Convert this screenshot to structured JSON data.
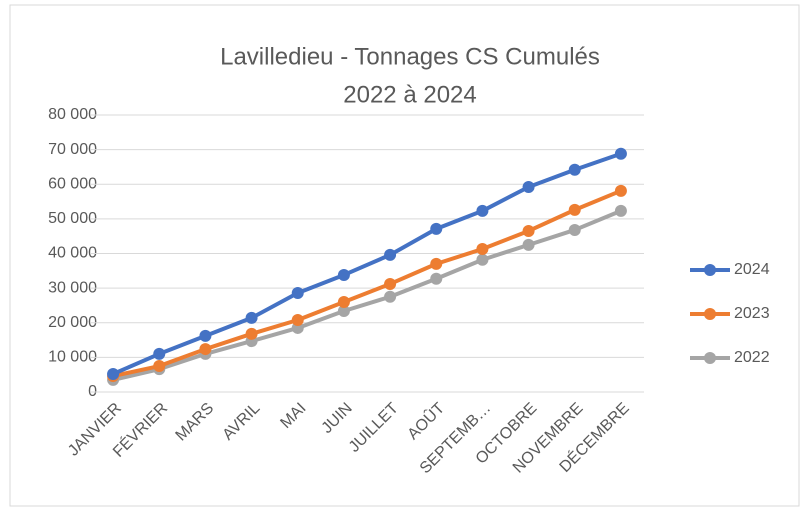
{
  "chart_data": {
    "type": "line",
    "title": "Lavilledieu - Tonnages CS Cumulés",
    "subtitle": "2022 à 2024",
    "categories": [
      "JANVIER",
      "FÉVRIER",
      "MARS",
      "AVRIL",
      "MAI",
      "JUIN",
      "JUILLET",
      "AOÛT",
      "SEPTEMB…",
      "OCTOBRE",
      "NOVEMBRE",
      "DÉCEMBRE"
    ],
    "series": [
      {
        "name": "2024",
        "color": "#4472c4",
        "values": [
          5200,
          11000,
          16200,
          21400,
          28600,
          33800,
          39600,
          47100,
          52300,
          59200,
          64200,
          68800
        ]
      },
      {
        "name": "2023",
        "color": "#ed7d31",
        "values": [
          4600,
          7500,
          12400,
          16800,
          20800,
          26000,
          31200,
          37000,
          41300,
          46500,
          52600,
          58100
        ]
      },
      {
        "name": "2022",
        "color": "#a5a5a5",
        "values": [
          3500,
          6600,
          11000,
          14700,
          18500,
          23400,
          27500,
          32700,
          38200,
          42500,
          46800,
          52300
        ]
      }
    ],
    "ylim": [
      0,
      80000
    ],
    "yticks": [
      0,
      {
        "value": 10000,
        "label": "10 000"
      },
      {
        "value": 20000,
        "label": "20 000"
      },
      {
        "value": 30000,
        "label": "30 000"
      },
      {
        "value": 40000,
        "label": "40 000"
      },
      {
        "value": 50000,
        "label": "50 000"
      },
      {
        "value": 60000,
        "label": "60 000"
      },
      {
        "value": 70000,
        "label": "70 000"
      },
      {
        "value": 80000,
        "label": "80 000"
      }
    ],
    "grid": true,
    "legend": "right"
  }
}
